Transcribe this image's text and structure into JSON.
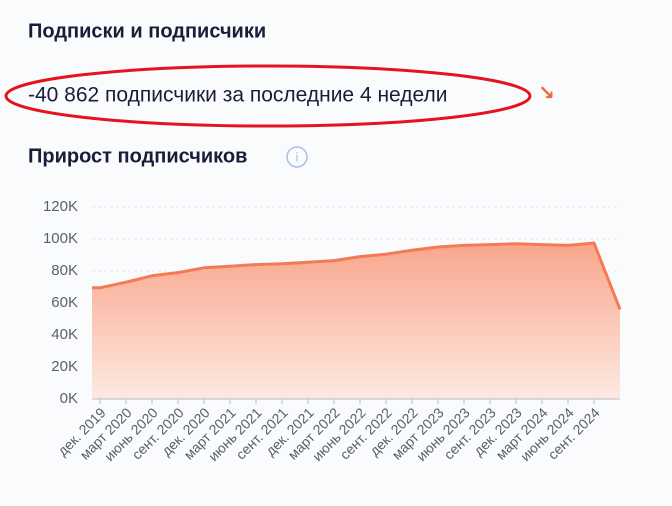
{
  "header": {
    "title": "Подписки и подписчики",
    "summary": "-40 862 подписчики за последние 4 недели",
    "trend_icon": "↘"
  },
  "section": {
    "title": "Прирост подписчиков",
    "info_icon": "i"
  },
  "chart_data": {
    "type": "area",
    "categories": [
      "дек. 2019",
      "март 2020",
      "июнь 2020",
      "сент. 2020",
      "дек. 2020",
      "март 2021",
      "июнь 2021",
      "сент. 2021",
      "дек. 2021",
      "март 2022",
      "июнь 2022",
      "сент. 2022",
      "дек. 2022",
      "март 2023",
      "июнь 2023",
      "сент. 2023",
      "дек. 2023",
      "март 2024",
      "июнь 2024",
      "сент. 2024",
      null
    ],
    "values": [
      69500,
      73000,
      77000,
      79000,
      82000,
      83000,
      84000,
      84500,
      85500,
      86500,
      89000,
      90500,
      93000,
      95000,
      96000,
      96500,
      97000,
      96500,
      96000,
      97500,
      56000
    ],
    "color": "#f47a55",
    "ylim": [
      0,
      120000
    ],
    "yticks": [
      {
        "value": 0,
        "label": "0K"
      },
      {
        "value": 20000,
        "label": "20K"
      },
      {
        "value": 40000,
        "label": "40K"
      },
      {
        "value": 60000,
        "label": "60K"
      },
      {
        "value": 80000,
        "label": "80K"
      },
      {
        "value": 100000,
        "label": "100K"
      },
      {
        "value": 120000,
        "label": "120K"
      }
    ],
    "grid": true
  }
}
